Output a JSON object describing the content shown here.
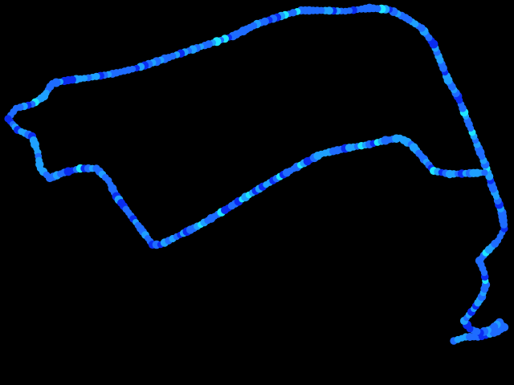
{
  "background_color": "#000000",
  "track": {
    "icon": "gps-track-dots",
    "colors": {
      "primary": "#1e6cff",
      "dark": "#0a2cf0",
      "light": "#1ea0ff",
      "highlight": "#1ee6ff"
    }
  }
}
